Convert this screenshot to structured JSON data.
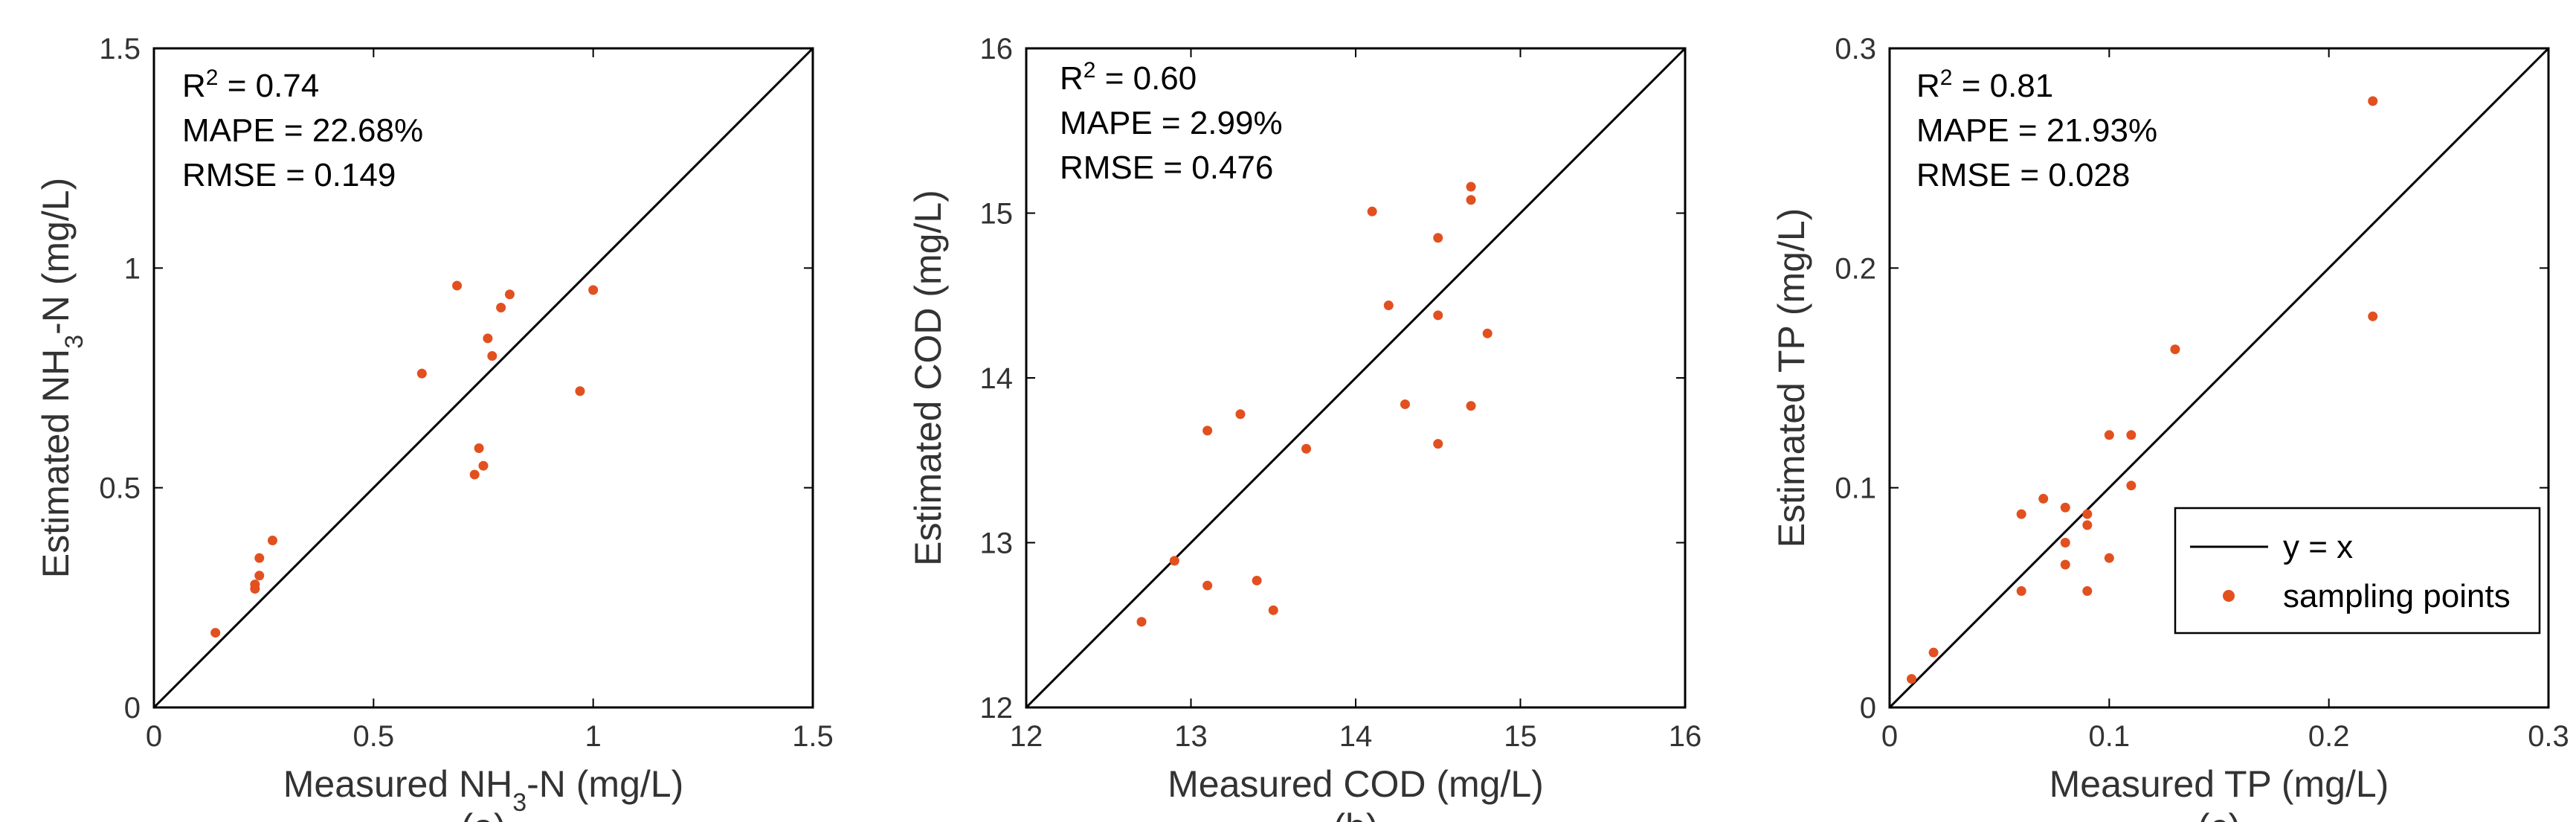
{
  "colors": {
    "point": "#e2501f",
    "axis": "#000000",
    "text": "#333333"
  },
  "legend": {
    "line_label": "y = x",
    "points_label": "sampling points"
  },
  "chart_data": [
    {
      "type": "scatter",
      "panel_label": "(a)",
      "xlabel_prefix": "Measured NH",
      "xlabel_sub": "3",
      "xlabel_suffix": "-N (mg/L)",
      "ylabel_prefix": "Estimated NH",
      "ylabel_sub": "3",
      "ylabel_suffix": "-N (mg/L)",
      "xlim": [
        0,
        1.5
      ],
      "ylim": [
        0,
        1.5
      ],
      "xticks": [
        "0",
        "0.5",
        "1",
        "1.5"
      ],
      "yticks": [
        "0",
        "0.5",
        "1",
        "1.5"
      ],
      "xtick_values": [
        0,
        0.5,
        1,
        1.5
      ],
      "ytick_values": [
        0,
        0.5,
        1,
        1.5
      ],
      "stats": {
        "r2_label": "R",
        "r2_sup": "2",
        "r2_value": " = 0.74",
        "mape": "MAPE = 22.68%",
        "rmse": "RMSE = 0.149"
      },
      "reference_line": "y = x",
      "x": [
        0.14,
        0.23,
        0.23,
        0.24,
        0.24,
        0.27,
        0.61,
        0.69,
        0.73,
        0.74,
        0.75,
        0.76,
        0.77,
        0.79,
        0.81,
        0.97,
        1.0
      ],
      "y": [
        0.17,
        0.27,
        0.28,
        0.3,
        0.34,
        0.38,
        0.76,
        0.96,
        0.53,
        0.59,
        0.55,
        0.84,
        0.8,
        0.91,
        0.94,
        0.72,
        0.95
      ]
    },
    {
      "type": "scatter",
      "panel_label": "(b)",
      "xlabel_prefix": "Measured COD (mg/L)",
      "xlabel_sub": "",
      "xlabel_suffix": "",
      "ylabel_prefix": "Estimated COD (mg/L)",
      "ylabel_sub": "",
      "ylabel_suffix": "",
      "xlim": [
        12,
        16
      ],
      "ylim": [
        12,
        16
      ],
      "xticks": [
        "12",
        "13",
        "14",
        "15",
        "16"
      ],
      "yticks": [
        "12",
        "13",
        "14",
        "15",
        "16"
      ],
      "xtick_values": [
        12,
        13,
        14,
        15,
        16
      ],
      "ytick_values": [
        12,
        13,
        14,
        15,
        16
      ],
      "stats": {
        "r2_label": "R",
        "r2_sup": "2",
        "r2_value": " = 0.60",
        "mape": "MAPE = 2.99%",
        "rmse": "RMSE = 0.476"
      },
      "reference_line": "y = x",
      "x": [
        12.7,
        12.9,
        13.1,
        13.1,
        13.3,
        13.4,
        13.5,
        13.7,
        14.1,
        14.2,
        14.3,
        14.5,
        14.5,
        14.5,
        14.7,
        14.7,
        14.7,
        14.8
      ],
      "y": [
        12.52,
        12.89,
        13.68,
        12.74,
        13.78,
        12.77,
        12.59,
        13.57,
        15.01,
        14.44,
        13.84,
        14.85,
        14.38,
        13.6,
        15.16,
        15.08,
        13.83,
        14.27
      ]
    },
    {
      "type": "scatter",
      "panel_label": "(c)",
      "xlabel_prefix": "Measured TP (mg/L)",
      "xlabel_sub": "",
      "xlabel_suffix": "",
      "ylabel_prefix": "Estimated TP (mg/L)",
      "ylabel_sub": "",
      "ylabel_suffix": "",
      "xlim": [
        0,
        0.3
      ],
      "ylim": [
        0,
        0.3
      ],
      "xticks": [
        "0",
        "0.1",
        "0.2",
        "0.3"
      ],
      "yticks": [
        "0",
        "0.1",
        "0.2",
        "0.3"
      ],
      "xtick_values": [
        0,
        0.1,
        0.2,
        0.3
      ],
      "ytick_values": [
        0,
        0.1,
        0.2,
        0.3
      ],
      "stats": {
        "r2_label": "R",
        "r2_sup": "2",
        "r2_value": " = 0.81",
        "mape": "MAPE = 21.93%",
        "rmse": "RMSE = 0.028"
      },
      "reference_line": "y = x",
      "x": [
        0.01,
        0.02,
        0.06,
        0.06,
        0.07,
        0.08,
        0.08,
        0.08,
        0.09,
        0.09,
        0.09,
        0.1,
        0.1,
        0.11,
        0.11,
        0.13,
        0.22,
        0.22
      ],
      "y": [
        0.013,
        0.025,
        0.053,
        0.088,
        0.095,
        0.091,
        0.075,
        0.065,
        0.088,
        0.083,
        0.053,
        0.124,
        0.068,
        0.124,
        0.101,
        0.163,
        0.276,
        0.178
      ]
    }
  ]
}
